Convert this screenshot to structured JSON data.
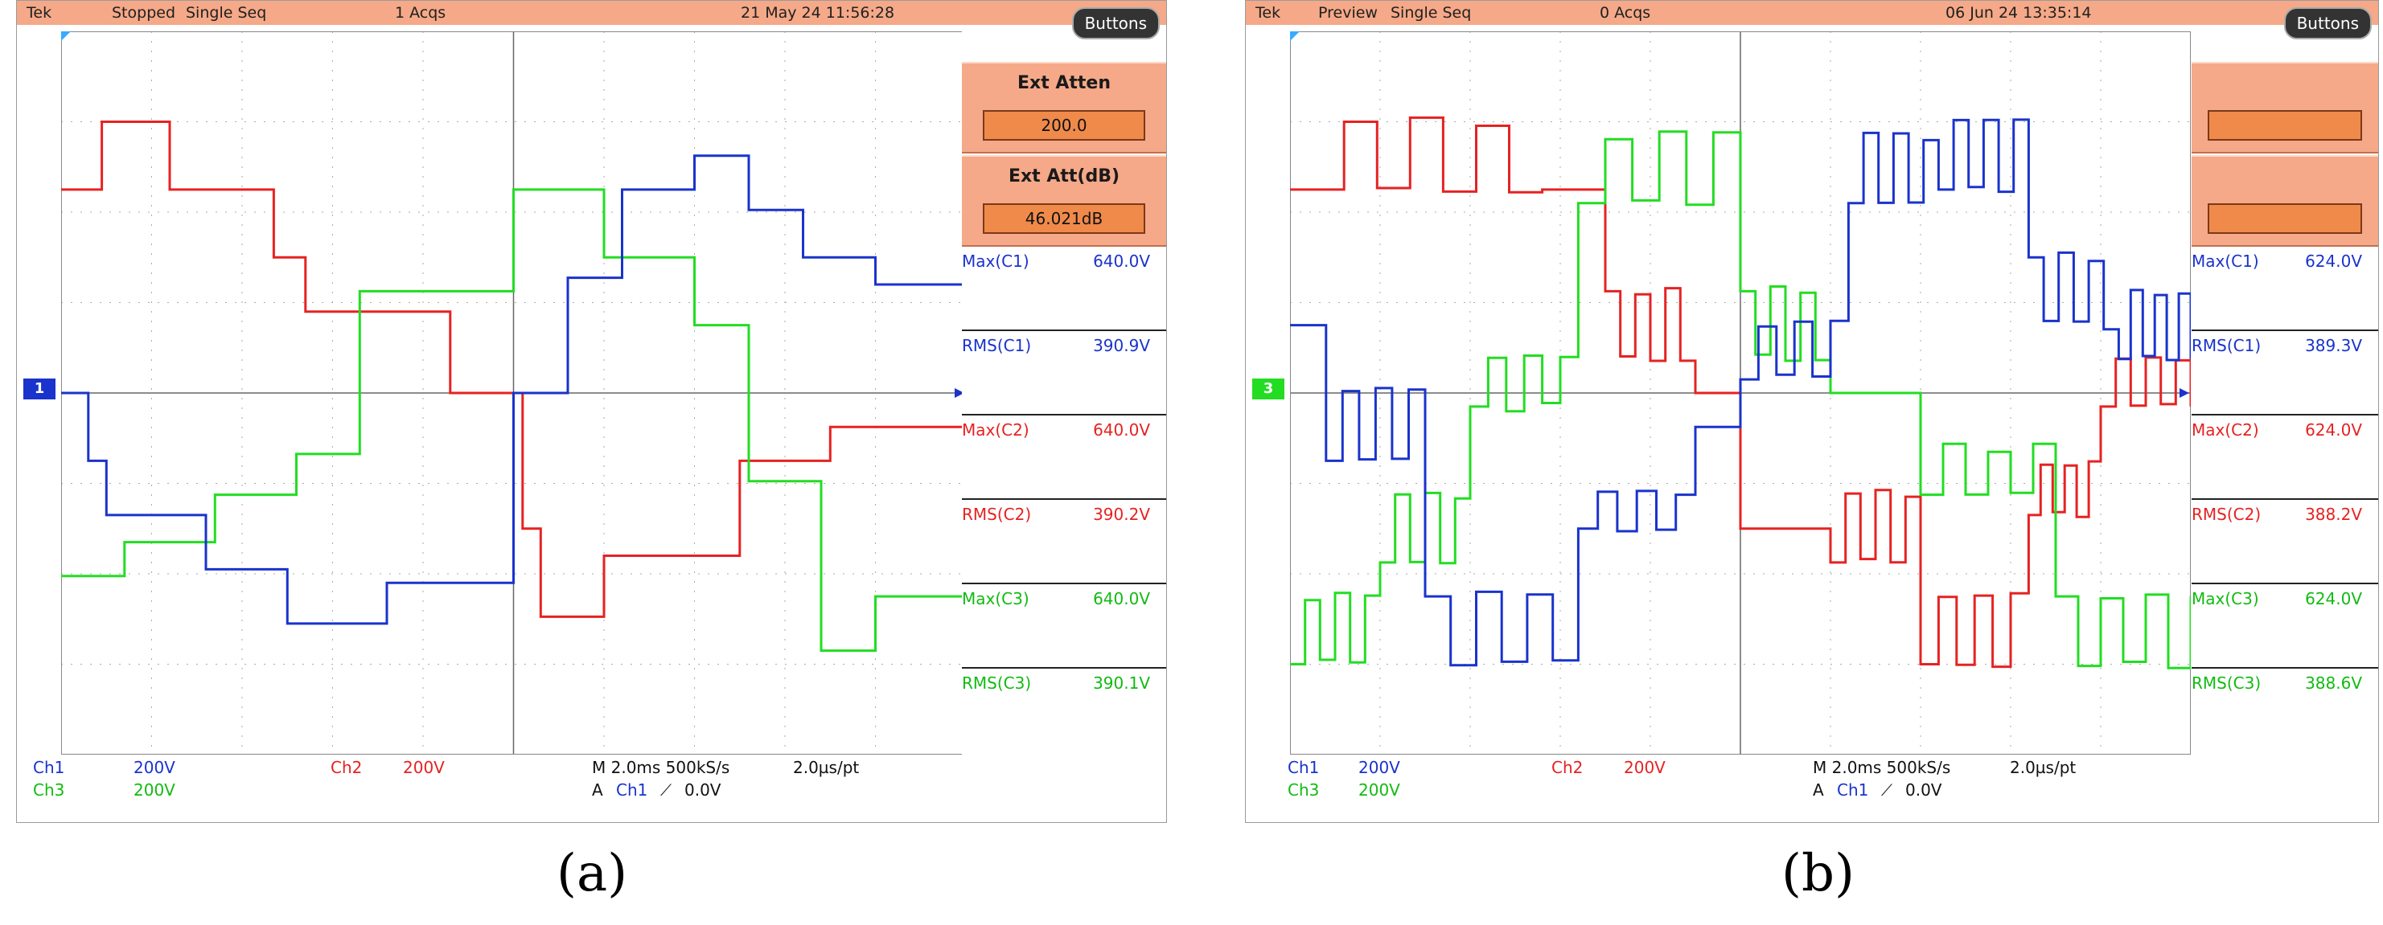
{
  "colors": {
    "ch1": "#1a33cc",
    "ch2": "#e62222",
    "ch3": "#22dd22",
    "menu": "#f5a988",
    "grid": "#888888"
  },
  "panels": [
    {
      "caption": "(a)",
      "header": {
        "brand": "Tek",
        "state": "Stopped",
        "mode": "Single Seq",
        "acqs": "1 Acqs",
        "datetime": "21 May 24 11:56:28"
      },
      "buttons_label": "Buttons",
      "menu": [
        {
          "title": "Ext Atten",
          "value": "200.0"
        },
        {
          "title": "Ext Att(dB)",
          "value": "46.021dB"
        }
      ],
      "measurements": [
        {
          "label": "Max(C1)",
          "value": "640.0V",
          "channel": "ch1"
        },
        {
          "label": "RMS(C1)",
          "value": "390.9V",
          "channel": "ch1"
        },
        {
          "label": "Max(C2)",
          "value": "640.0V",
          "channel": "ch2"
        },
        {
          "label": "RMS(C2)",
          "value": "390.2V",
          "channel": "ch2"
        },
        {
          "label": "Max(C3)",
          "value": "640.0V",
          "channel": "ch3"
        },
        {
          "label": "RMS(C3)",
          "value": "390.1V",
          "channel": "ch3"
        }
      ],
      "channel_marker": "1",
      "status": {
        "ch1": "Ch1",
        "ch1_scale": "200V",
        "ch2": "Ch2",
        "ch2_scale": "200V",
        "ch3": "Ch3",
        "ch3_scale": "200V",
        "timebase": "M 2.0ms 500kS/s",
        "pt": "2.0µs/pt",
        "trigger": "A",
        "trigger_ch": "Ch1",
        "trigger_edge": "⟋",
        "trigger_level": "0.0V"
      }
    },
    {
      "caption": "(b)",
      "header": {
        "brand": "Tek",
        "state": "Preview",
        "mode": "Single Seq",
        "acqs": "0 Acqs",
        "datetime": "06 Jun 24 13:35:14"
      },
      "buttons_label": "Buttons",
      "menu": [],
      "measurements": [
        {
          "label": "Max(C1)",
          "value": "624.0V",
          "channel": "ch1"
        },
        {
          "label": "RMS(C1)",
          "value": "389.3V",
          "channel": "ch1"
        },
        {
          "label": "Max(C2)",
          "value": "624.0V",
          "channel": "ch2"
        },
        {
          "label": "RMS(C2)",
          "value": "388.2V",
          "channel": "ch2"
        },
        {
          "label": "Max(C3)",
          "value": "624.0V",
          "channel": "ch3"
        },
        {
          "label": "RMS(C3)",
          "value": "388.6V",
          "channel": "ch3"
        }
      ],
      "channel_marker": "3",
      "status": {
        "ch1": "Ch1",
        "ch1_scale": "200V",
        "ch2": "Ch2",
        "ch2_scale": "200V",
        "ch3": "Ch3",
        "ch3_scale": "200V",
        "timebase": "M 2.0ms 500kS/s",
        "pt": "2.0µs/pt",
        "trigger": "A",
        "trigger_ch": "Ch1",
        "trigger_edge": "⟋",
        "trigger_level": "0.0V"
      }
    }
  ]
}
